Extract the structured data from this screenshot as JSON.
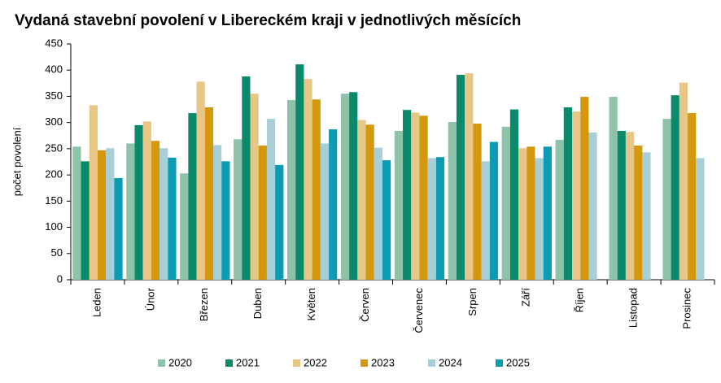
{
  "chart_data": {
    "type": "bar",
    "title": "Vydaná stavební povolení v Libereckém kraji v jednotlivých měsících",
    "y_label": "počet povolení",
    "categories": [
      "Leden",
      "Únor",
      "Březen",
      "Duben",
      "Květen",
      "Červen",
      "Červenec",
      "Srpen",
      "Září",
      "Říjen",
      "Listopad",
      "Prosinec"
    ],
    "series": [
      {
        "name": "2020",
        "color": "#8dc3a9",
        "values": [
          254,
          260,
          203,
          268,
          343,
          355,
          284,
          301,
          292,
          267,
          349,
          307
        ]
      },
      {
        "name": "2021",
        "color": "#0a8a6a",
        "values": [
          226,
          295,
          318,
          388,
          411,
          358,
          324,
          391,
          325,
          329,
          284,
          352
        ]
      },
      {
        "name": "2022",
        "color": "#e8c686",
        "values": [
          333,
          302,
          378,
          355,
          383,
          305,
          319,
          394,
          251,
          321,
          282,
          376
        ]
      },
      {
        "name": "2023",
        "color": "#d4980e",
        "values": [
          247,
          265,
          329,
          256,
          344,
          296,
          313,
          298,
          254,
          349,
          256,
          318
        ]
      },
      {
        "name": "2024",
        "color": "#a8cfd8",
        "values": [
          251,
          251,
          257,
          307,
          260,
          252,
          232,
          226,
          232,
          281,
          243,
          232
        ]
      },
      {
        "name": "2025",
        "color": "#0b9bb3",
        "values": [
          194,
          233,
          226,
          219,
          287,
          228,
          234,
          263,
          254,
          null,
          null,
          null
        ]
      }
    ],
    "ylim": [
      0,
      450
    ],
    "yticks": [
      0,
      50,
      100,
      150,
      200,
      250,
      300,
      350,
      400,
      450
    ],
    "grid": false,
    "legend": "bottom"
  }
}
